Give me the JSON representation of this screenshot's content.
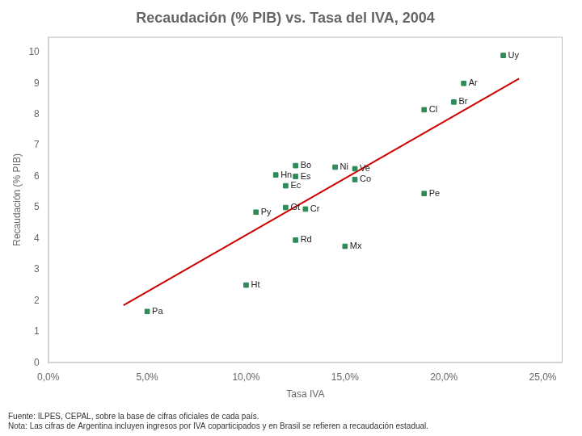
{
  "chart_data": {
    "type": "scatter",
    "title": "Recaudación (% PIB) vs. Tasa del IVA, 2004",
    "x_label": "Tasa IVA",
    "y_label": "Recaudación (% PIB)",
    "annotations": [
      "Fuente: ILPES, CEPAL, sobre la base de cifras oficiales de cada país.",
      "Nota: Las cifras de Argentina incluyen ingresos por IVA coparticipados y en Brasil se refieren a recaudación estadual."
    ],
    "series": [
      {
        "type": "scatter",
        "marker": "square",
        "color": "#2E8B57",
        "point_labels": [
          "Uy",
          "Ar",
          "Br",
          "Cl",
          "Ni",
          "Bo",
          "Ve",
          "Hn",
          "Es",
          "Co",
          "Ec",
          "Pe",
          "Gt",
          "Py",
          "Cr",
          "Rd",
          "Mx",
          "Ht",
          "Pa"
        ],
        "x": [
          0.23,
          0.21,
          0.205,
          0.19,
          0.145,
          0.125,
          0.155,
          0.115,
          0.125,
          0.155,
          0.12,
          0.19,
          0.12,
          0.105,
          0.13,
          0.125,
          0.15,
          0.1,
          0.05
        ],
        "values": [
          9.9,
          9.0,
          8.4,
          8.15,
          6.3,
          6.35,
          6.25,
          6.05,
          6.0,
          5.9,
          5.7,
          5.45,
          5.0,
          4.85,
          4.95,
          3.95,
          3.75,
          2.5,
          1.65
        ]
      },
      {
        "type": "line",
        "line_style": "solid",
        "color": "#CC0000",
        "x": [
          0.038,
          0.238
        ],
        "values": [
          1.85,
          9.15
        ]
      }
    ],
    "xlim": [
      0.0,
      0.26
    ],
    "ylim": [
      0,
      10.5
    ],
    "xticks": [
      {
        "value": 0.0,
        "label": "0,0%"
      },
      {
        "value": 0.05,
        "label": "5,0%"
      },
      {
        "value": 0.1,
        "label": "10,0%"
      },
      {
        "value": 0.15,
        "label": "15,0%"
      },
      {
        "value": 0.2,
        "label": "20,0%"
      },
      {
        "value": 0.25,
        "label": "25,0%"
      }
    ],
    "yticks": [
      0,
      1,
      2,
      3,
      4,
      5,
      6,
      7,
      8,
      9,
      10
    ],
    "grid": false
  }
}
